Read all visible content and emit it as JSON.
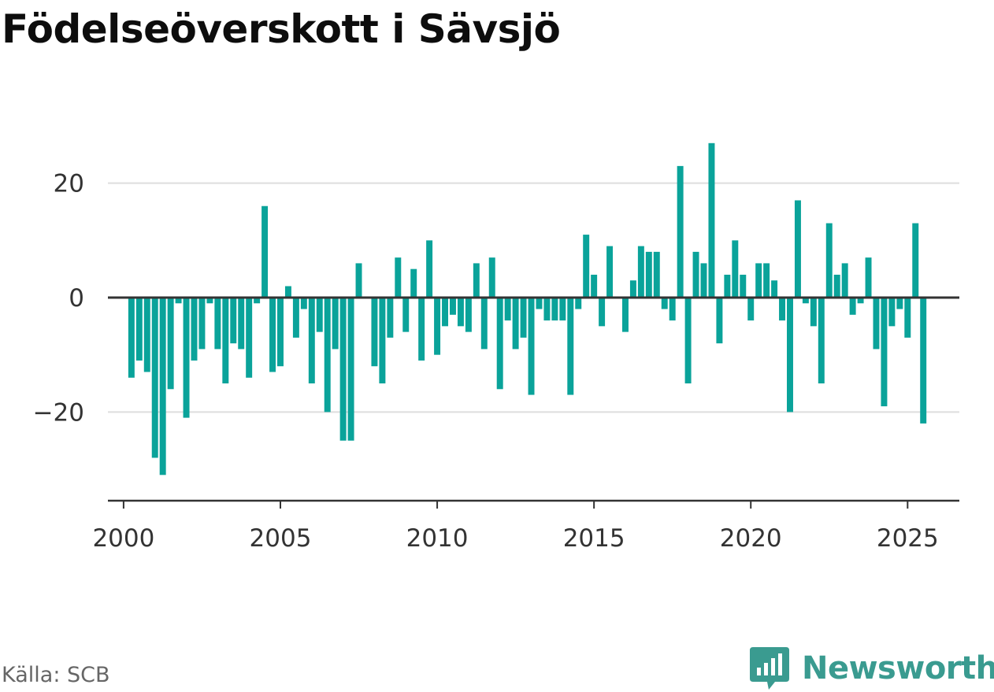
{
  "chart_data": {
    "type": "bar",
    "title": "Födelseöverskott i Sävsjö",
    "xlabel": "",
    "ylabel": "",
    "x_start": 2000.25,
    "x_step": 0.25,
    "values": [
      -14,
      -11,
      -13,
      -28,
      -31,
      -16,
      -1,
      -21,
      -11,
      -9,
      -1,
      -9,
      -15,
      -8,
      -9,
      -14,
      -1,
      16,
      -13,
      -12,
      2,
      -7,
      -2,
      -15,
      -6,
      -20,
      -9,
      -25,
      -25,
      6,
      0,
      -12,
      -15,
      -7,
      7,
      -6,
      5,
      -11,
      10,
      -10,
      -5,
      -3,
      -5,
      -6,
      6,
      -9,
      7,
      -16,
      -4,
      -9,
      -7,
      -17,
      -2,
      -4,
      -4,
      -4,
      -17,
      -2,
      11,
      4,
      -5,
      9,
      0,
      -6,
      3,
      9,
      8,
      8,
      -2,
      -4,
      23,
      -15,
      8,
      6,
      27,
      -8,
      4,
      10,
      4,
      -4,
      6,
      6,
      3,
      -4,
      -20,
      17,
      -1,
      -5,
      -15,
      13,
      4,
      6,
      -3,
      -1,
      7,
      -9,
      -19,
      -5,
      -2,
      -7,
      13,
      -22
    ],
    "xticks": [
      "2000",
      "2005",
      "2010",
      "2015",
      "2020",
      "2025"
    ],
    "yticks": [
      "20",
      "0",
      "−20"
    ],
    "xlim": [
      1999.5,
      2026.65
    ],
    "ylim": [
      -35.5,
      30
    ],
    "grid": true,
    "bar_color": "#0aa39a"
  },
  "source": "Källa: SCB",
  "brand": "Newsworthy",
  "colors": {
    "bar": "#0aa39a",
    "brand": "#3a9b90",
    "zero_line": "#333333",
    "grid": "#dddddd"
  }
}
